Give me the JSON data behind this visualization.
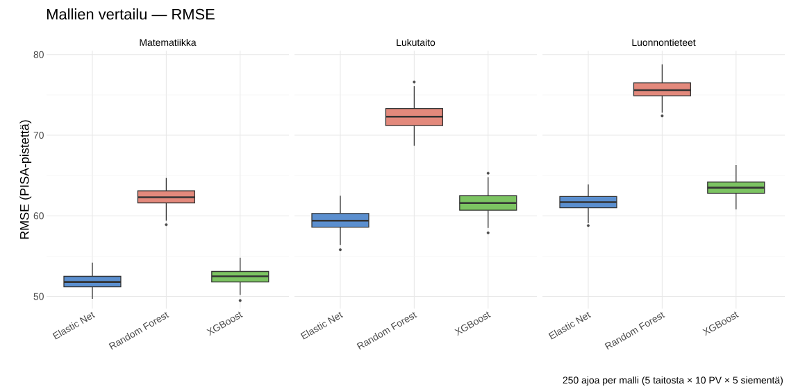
{
  "chart_data": [
    {
      "type": "box",
      "title": "Mallien vertailu — RMSE",
      "subtitle": "Matematiikka",
      "ylabel": "RMSE (PISA-pistettä)",
      "categories": [
        "Elastic Net",
        "Random Forest",
        "XGBoost"
      ],
      "colors": [
        "#5b8fcf",
        "#e3897c",
        "#7cc462"
      ],
      "boxes": [
        {
          "low": 49.7,
          "q1": 51.2,
          "median": 51.8,
          "q3": 52.5,
          "high": 54.2
        },
        {
          "low": 59.4,
          "q1": 61.6,
          "median": 62.3,
          "q3": 63.1,
          "high": 64.7,
          "outliers": [
            58.9
          ]
        },
        {
          "low": 50.2,
          "q1": 51.8,
          "median": 52.5,
          "q3": 53.1,
          "high": 54.8,
          "outliers": [
            49.5
          ]
        }
      ],
      "ylim": [
        48.5,
        80.5
      ],
      "yticks": [
        50,
        60,
        70,
        80
      ],
      "grid": true
    },
    {
      "type": "box",
      "subtitle": "Lukutaito",
      "categories": [
        "Elastic Net",
        "Random Forest",
        "XGBoost"
      ],
      "colors": [
        "#5b8fcf",
        "#e3897c",
        "#7cc462"
      ],
      "boxes": [
        {
          "low": 56.4,
          "q1": 58.6,
          "median": 59.4,
          "q3": 60.3,
          "high": 62.5,
          "outliers": [
            55.8
          ]
        },
        {
          "low": 68.7,
          "q1": 71.2,
          "median": 72.3,
          "q3": 73.3,
          "high": 76.1,
          "outliers": [
            76.6
          ]
        },
        {
          "low": 58.5,
          "q1": 60.7,
          "median": 61.6,
          "q3": 62.5,
          "high": 64.8,
          "outliers": [
            57.9,
            65.3
          ]
        }
      ],
      "ylim": [
        48.5,
        80.5
      ],
      "yticks": [
        50,
        60,
        70,
        80
      ],
      "grid": true,
      "tick_labels": "x"
    },
    {
      "type": "box",
      "subtitle": "Luonnontieteet",
      "categories": [
        "Elastic Net",
        "Random Forest",
        "XGBoost"
      ],
      "colors": [
        "#5b8fcf",
        "#e3897c",
        "#7cc462"
      ],
      "boxes": [
        {
          "low": 59.1,
          "q1": 61.0,
          "median": 61.7,
          "q3": 62.4,
          "high": 63.9,
          "outliers": [
            58.8
          ]
        },
        {
          "low": 72.8,
          "q1": 74.9,
          "median": 75.6,
          "q3": 76.5,
          "high": 78.8,
          "outliers": [
            72.4
          ]
        },
        {
          "low": 60.8,
          "q1": 62.8,
          "median": 63.5,
          "q3": 64.2,
          "high": 66.3
        }
      ],
      "ylim": [
        48.5,
        80.5
      ],
      "yticks": [
        50,
        60,
        70,
        80
      ],
      "grid": true,
      "tick_labels": "x",
      "annotations": [
        "250 ajoa per malli (5 taitosta × 10 PV × 5 siementä)"
      ]
    }
  ]
}
